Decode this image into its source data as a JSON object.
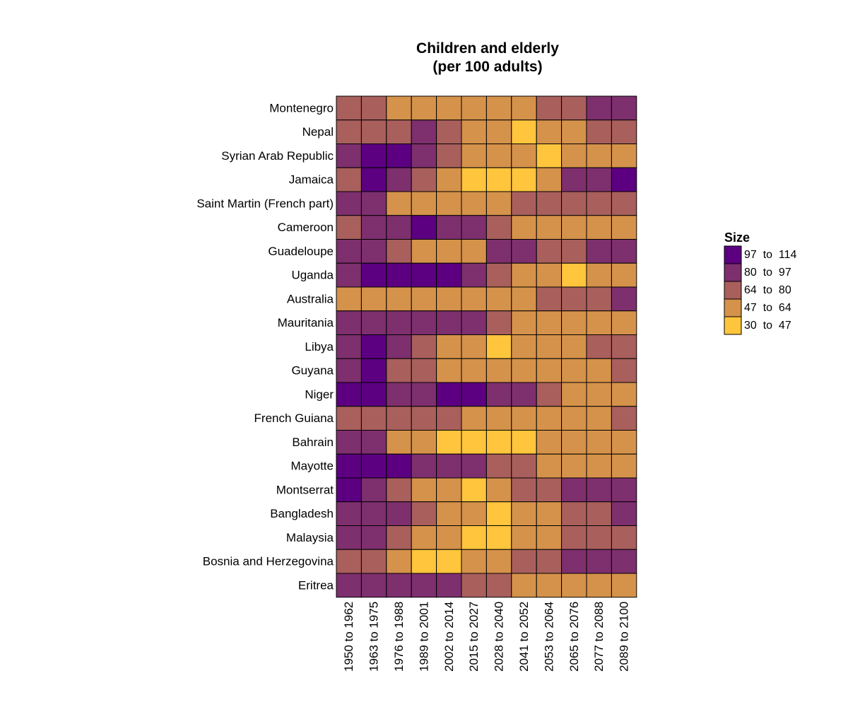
{
  "chart_data": {
    "type": "heatmap",
    "title": "Children and elderly",
    "subtitle": "(per 100 adults)",
    "xlabel": "",
    "ylabel": "",
    "x_categories": [
      "1950 to 1962",
      "1963 to 1975",
      "1976 to 1988",
      "1989 to 2001",
      "2002 to 2014",
      "2015 to 2027",
      "2028 to 2040",
      "2041 to 2052",
      "2053 to 2064",
      "2065 to 2076",
      "2077 to 2088",
      "2089 to 2100"
    ],
    "y_categories": [
      "Montenegro",
      "Nepal",
      "Syrian Arab Republic",
      "Jamaica",
      "Saint Martin (French part)",
      "Cameroon",
      "Guadeloupe",
      "Uganda",
      "Australia",
      "Mauritania",
      "Libya",
      "Guyana",
      "Niger",
      "French Guiana",
      "Bahrain",
      "Mayotte",
      "Montserrat",
      "Bangladesh",
      "Malaysia",
      "Bosnia and Herzegovina",
      "Eritrea"
    ],
    "bin_index_note": "0 = 97 to 114, 1 = 80 to 97, 2 = 64 to 80, 3 = 47 to 64, 4 = 30 to 47",
    "values": [
      [
        2,
        2,
        3,
        3,
        3,
        3,
        3,
        3,
        2,
        2,
        1,
        1
      ],
      [
        2,
        2,
        2,
        1,
        2,
        3,
        3,
        4,
        3,
        3,
        2,
        2
      ],
      [
        1,
        0,
        0,
        1,
        2,
        3,
        3,
        3,
        4,
        3,
        3,
        3
      ],
      [
        2,
        0,
        1,
        2,
        3,
        4,
        4,
        4,
        3,
        1,
        1,
        0
      ],
      [
        1,
        1,
        3,
        3,
        3,
        3,
        3,
        2,
        2,
        2,
        2,
        2
      ],
      [
        2,
        1,
        1,
        0,
        1,
        1,
        2,
        3,
        3,
        3,
        3,
        3
      ],
      [
        1,
        1,
        2,
        3,
        3,
        3,
        1,
        1,
        2,
        2,
        1,
        1
      ],
      [
        1,
        0,
        0,
        0,
        0,
        1,
        2,
        3,
        3,
        4,
        3,
        3
      ],
      [
        3,
        3,
        3,
        3,
        3,
        3,
        3,
        3,
        2,
        2,
        2,
        1
      ],
      [
        1,
        1,
        1,
        1,
        1,
        1,
        2,
        3,
        3,
        3,
        3,
        3
      ],
      [
        1,
        0,
        1,
        2,
        3,
        3,
        4,
        3,
        3,
        3,
        2,
        2
      ],
      [
        1,
        0,
        2,
        2,
        3,
        3,
        3,
        3,
        3,
        3,
        3,
        2
      ],
      [
        0,
        0,
        1,
        1,
        0,
        0,
        1,
        1,
        2,
        3,
        3,
        3
      ],
      [
        2,
        2,
        2,
        2,
        2,
        3,
        3,
        3,
        3,
        3,
        3,
        2
      ],
      [
        1,
        1,
        3,
        3,
        4,
        4,
        4,
        4,
        3,
        3,
        3,
        3
      ],
      [
        0,
        0,
        0,
        1,
        1,
        1,
        2,
        2,
        3,
        3,
        3,
        3
      ],
      [
        0,
        1,
        2,
        3,
        3,
        4,
        3,
        2,
        2,
        1,
        1,
        1
      ],
      [
        1,
        1,
        1,
        2,
        3,
        3,
        4,
        3,
        3,
        2,
        2,
        1
      ],
      [
        1,
        1,
        2,
        3,
        3,
        4,
        4,
        3,
        3,
        2,
        2,
        2
      ],
      [
        2,
        2,
        3,
        4,
        4,
        3,
        3,
        2,
        2,
        1,
        1,
        1
      ],
      [
        1,
        1,
        1,
        1,
        1,
        2,
        2,
        3,
        3,
        3,
        3,
        3
      ]
    ],
    "legend": {
      "title": "Size",
      "placement": "right",
      "bins": [
        {
          "label": "97  to  114",
          "color": "#5c0081"
        },
        {
          "label": "80  to  97",
          "color": "#7e2f6e"
        },
        {
          "label": "64  to  80",
          "color": "#a95f5c"
        },
        {
          "label": "47  to  64",
          "color": "#d5924a"
        },
        {
          "label": "30  to  47",
          "color": "#ffc53d"
        }
      ]
    }
  }
}
